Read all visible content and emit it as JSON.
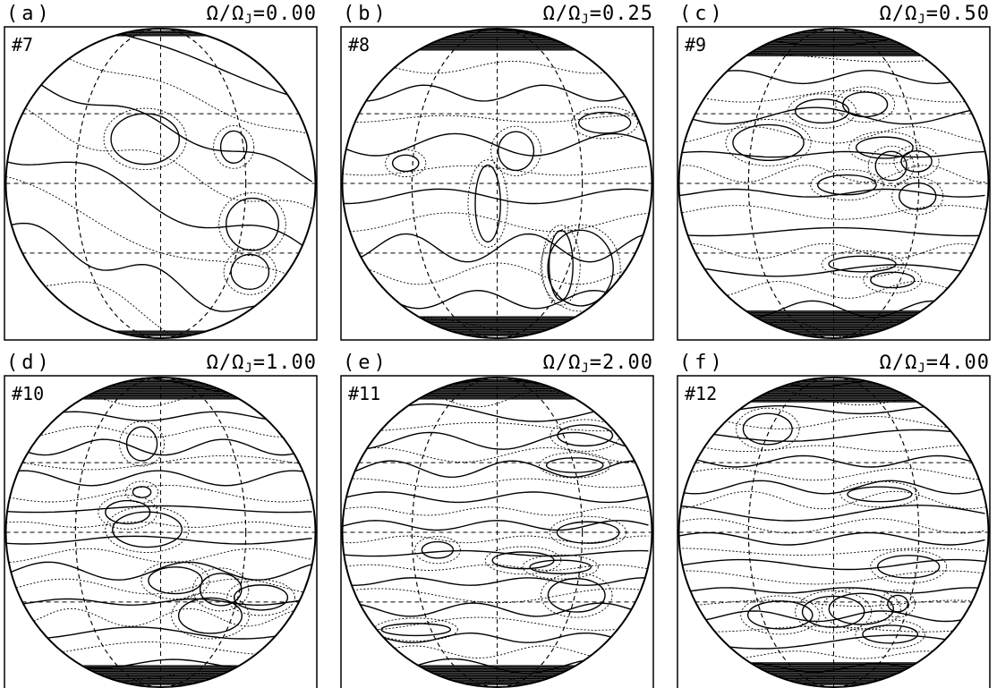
{
  "panels": [
    {
      "label": "(a)",
      "symbol": "Ω/Ω",
      "subscript": "J",
      "value": "=0.00",
      "run": "#7"
    },
    {
      "label": "(b)",
      "symbol": "Ω/Ω",
      "subscript": "J",
      "value": "=0.25",
      "run": "#8"
    },
    {
      "label": "(c)",
      "symbol": "Ω/Ω",
      "subscript": "J",
      "value": "=0.50",
      "run": "#9"
    },
    {
      "label": "(d)",
      "symbol": "Ω/Ω",
      "subscript": "J",
      "value": "=1.00",
      "run": "#10"
    },
    {
      "label": "(e)",
      "symbol": "Ω/Ω",
      "subscript": "J",
      "value": "=2.00",
      "run": "#11"
    },
    {
      "label": "(f)",
      "symbol": "Ω/Ω",
      "subscript": "J",
      "value": "=4.00",
      "run": "#12"
    }
  ]
}
